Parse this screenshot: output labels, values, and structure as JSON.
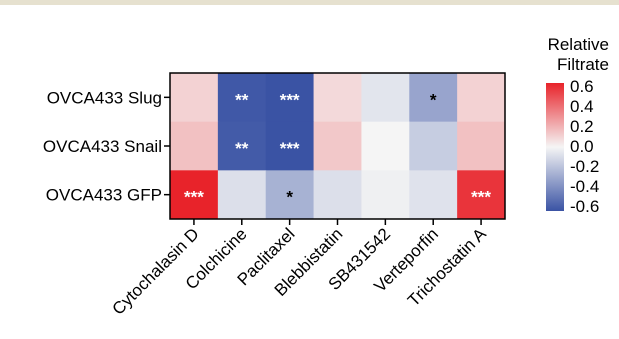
{
  "chart_data": {
    "type": "heatmap",
    "rows": [
      "OVCA433 Slug",
      "OVCA433 Snail",
      "OVCA433 GFP"
    ],
    "columns": [
      "Cytochalasin D",
      "Colchicine",
      "Paclitaxel",
      "Blebbistatin",
      "SB431542",
      "Verteporfin",
      "Trichostatin A"
    ],
    "values": [
      [
        0.1,
        -0.58,
        -0.6,
        0.08,
        -0.06,
        -0.3,
        0.1
      ],
      [
        0.15,
        -0.57,
        -0.62,
        0.13,
        0.0,
        -0.15,
        0.15
      ],
      [
        0.62,
        -0.08,
        -0.25,
        -0.08,
        -0.02,
        -0.07,
        0.55
      ]
    ],
    "annotations": [
      [
        "",
        "**",
        "***",
        "",
        "",
        "*",
        ""
      ],
      [
        "",
        "**",
        "***",
        "",
        "",
        "",
        ""
      ],
      [
        "***",
        "",
        "*",
        "",
        "",
        "",
        "***"
      ]
    ],
    "legend": {
      "title_line1": "Relative",
      "title_line2": "Filtrate",
      "ticks": [
        "0.6",
        "0.4",
        "0.2",
        "0.0",
        "-0.2",
        "-0.4",
        "-0.6"
      ],
      "range": [
        -0.6,
        0.6
      ],
      "low_color": "#3a53a4",
      "mid_color": "#f5f5f5",
      "high_color": "#e8232a",
      "placement": "right"
    }
  }
}
